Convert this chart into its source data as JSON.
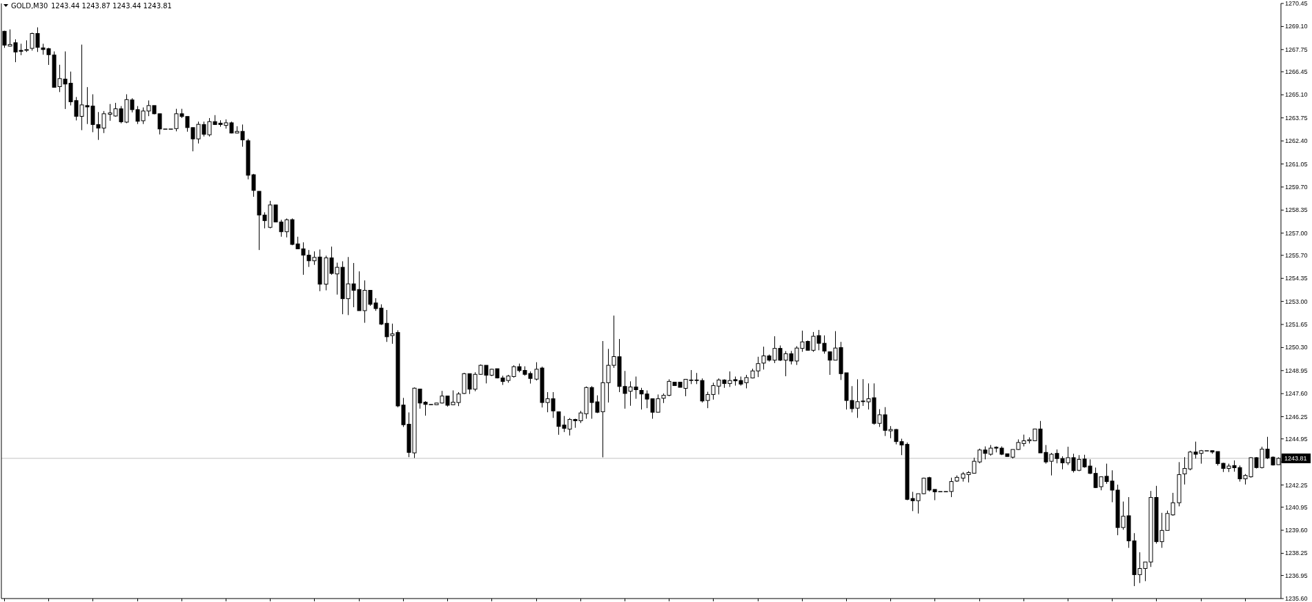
{
  "chart_data": {
    "type": "candlestick",
    "title": "GOLD,M30",
    "subtitle": "1243.44 1243.87 1243.44 1243.81",
    "color": "#000000",
    "grid": false,
    "tick_labels": "y",
    "categories": [
      null,
      null,
      null,
      null,
      null,
      null,
      null,
      null,
      null,
      null,
      null,
      null,
      null,
      null,
      null,
      null,
      null,
      null,
      null,
      null,
      null,
      null,
      null,
      null,
      null,
      null,
      null,
      null,
      null,
      null,
      null,
      null,
      null,
      null,
      null,
      null,
      null,
      null,
      null,
      null,
      null,
      null,
      null,
      null,
      null,
      null,
      null,
      null,
      null,
      null,
      null,
      null,
      null,
      null,
      null,
      null,
      null,
      null,
      null,
      null,
      null,
      null,
      null,
      null,
      null,
      null,
      null,
      null,
      null,
      null,
      null,
      null,
      null,
      null,
      null,
      null,
      null,
      null,
      null,
      null,
      null,
      null,
      null,
      null,
      null,
      null,
      null,
      null,
      null,
      null,
      null,
      null,
      null,
      null,
      null,
      null,
      null,
      null,
      null,
      null,
      null,
      null,
      null,
      null,
      null,
      null,
      null,
      null,
      null,
      null,
      null,
      null,
      null,
      null,
      null,
      null,
      null,
      null,
      null,
      null,
      null,
      null,
      null,
      null,
      null,
      null,
      null,
      null,
      null,
      null,
      null,
      null,
      null,
      null,
      null,
      null,
      null,
      null,
      null,
      null,
      null,
      null,
      null,
      null,
      null,
      null,
      null,
      null,
      null,
      null,
      null,
      null,
      null,
      null,
      null,
      null,
      null,
      null,
      null,
      null,
      null,
      null,
      null,
      null,
      null,
      null,
      null,
      null,
      null,
      null,
      null,
      null,
      null,
      null,
      null,
      null,
      null,
      null,
      null,
      null,
      null,
      null,
      null,
      null,
      null,
      null,
      null,
      null,
      null,
      null,
      null,
      null,
      null,
      null,
      null,
      null,
      null,
      null,
      null,
      null,
      null,
      null,
      null,
      null,
      null,
      null,
      null,
      null,
      null,
      null,
      null,
      null,
      null,
      null,
      null,
      null,
      null,
      null,
      null,
      null,
      null,
      null,
      null,
      null,
      null,
      null,
      null,
      null,
      null,
      null,
      null
    ],
    "ohlc": [
      [
        1268.82,
        1268.85,
        1267.85,
        1268.01
      ],
      [
        1267.95,
        1268.93,
        1267.93,
        1268.05
      ],
      [
        1268.15,
        1268.35,
        1267.01,
        1267.61
      ],
      [
        1267.7,
        1268.09,
        1267.42,
        1267.65
      ],
      [
        1267.7,
        1268.29,
        1267.61,
        1267.75
      ],
      [
        1267.82,
        1268.74,
        1267.69,
        1268.69
      ],
      [
        1268.69,
        1269.05,
        1267.61,
        1267.88
      ],
      [
        1267.85,
        1268.09,
        1267.45,
        1267.75
      ],
      [
        1267.8,
        1267.85,
        1266.85,
        1267.45
      ],
      [
        1267.43,
        1267.64,
        1265.54,
        1265.54
      ],
      [
        1265.58,
        1266.86,
        1265.26,
        1266.05
      ],
      [
        1266.02,
        1267.64,
        1264.27,
        1265.73
      ],
      [
        1265.78,
        1266.46,
        1264.48,
        1264.69
      ],
      [
        1264.76,
        1264.97,
        1263.6,
        1263.84
      ],
      [
        1263.84,
        1268.04,
        1263.03,
        1264.51
      ],
      [
        1264.47,
        1265.55,
        1263.39,
        1264.39
      ],
      [
        1264.44,
        1265.13,
        1262.91,
        1263.36
      ],
      [
        1263.36,
        1264.09,
        1262.46,
        1263.15
      ],
      [
        1263.15,
        1264.15,
        1262.86,
        1263.99
      ],
      [
        1263.96,
        1264.56,
        1263.58,
        1264.04
      ],
      [
        1263.86,
        1264.63,
        1263.82,
        1264.28
      ],
      [
        1264.28,
        1264.44,
        1263.43,
        1263.52
      ],
      [
        1263.5,
        1265.13,
        1263.44,
        1264.82
      ],
      [
        1264.8,
        1264.9,
        1264.07,
        1264.23
      ],
      [
        1264.23,
        1264.44,
        1263.39,
        1263.55
      ],
      [
        1263.58,
        1264.36,
        1263.39,
        1264.15
      ],
      [
        1264.15,
        1264.77,
        1263.85,
        1264.47
      ],
      [
        1264.47,
        1264.47,
        1263.96,
        1263.99
      ],
      [
        1263.99,
        1263.99,
        1262.78,
        1263.1
      ],
      [
        1263.1,
        1263.1,
        1263.1,
        1263.1
      ],
      [
        1263.1,
        1263.1,
        1263.1,
        1263.1
      ],
      [
        1263.12,
        1264.28,
        1262.96,
        1263.99
      ],
      [
        1263.99,
        1264.28,
        1263.74,
        1263.83
      ],
      [
        1263.83,
        1263.83,
        1262.94,
        1263.18
      ],
      [
        1263.18,
        1263.18,
        1261.79,
        1262.52
      ],
      [
        1262.52,
        1263.53,
        1262.25,
        1263.37
      ],
      [
        1263.36,
        1263.53,
        1262.66,
        1262.79
      ],
      [
        1262.76,
        1263.74,
        1262.66,
        1263.53
      ],
      [
        1263.53,
        1263.91,
        1263.36,
        1263.36
      ],
      [
        1263.44,
        1263.61,
        1263.23,
        1263.36
      ],
      [
        1263.31,
        1263.66,
        1263.12,
        1263.46
      ],
      [
        1263.46,
        1263.53,
        1262.84,
        1262.86
      ],
      [
        1262.86,
        1263.26,
        1262.84,
        1262.96
      ],
      [
        1262.96,
        1263.36,
        1262.06,
        1262.46
      ],
      [
        1262.41,
        1262.52,
        1260.15,
        1260.39
      ],
      [
        1260.42,
        1260.47,
        1259.13,
        1259.5
      ],
      [
        1259.45,
        1259.45,
        1256.01,
        1258.06
      ],
      [
        1258.06,
        1258.22,
        1257.28,
        1257.73
      ],
      [
        1257.34,
        1258.89,
        1257.28,
        1258.65
      ],
      [
        1258.65,
        1258.65,
        1257.65,
        1257.65
      ],
      [
        1257.65,
        1257.78,
        1256.79,
        1257.08
      ],
      [
        1257.08,
        1257.86,
        1256.75,
        1257.78
      ],
      [
        1257.79,
        1257.86,
        1256.29,
        1256.34
      ],
      [
        1256.37,
        1256.79,
        1256.08,
        1256.08
      ],
      [
        1256.08,
        1256.46,
        1254.56,
        1255.71
      ],
      [
        1255.71,
        1256.01,
        1255.02,
        1255.38
      ],
      [
        1255.38,
        1255.93,
        1255.14,
        1255.58
      ],
      [
        1255.6,
        1256.04,
        1253.6,
        1254.01
      ],
      [
        1254.01,
        1255.68,
        1253.65,
        1255.55
      ],
      [
        1255.55,
        1256.21,
        1254.56,
        1254.64
      ],
      [
        1254.61,
        1255.27,
        1253.4,
        1255.0
      ],
      [
        1255.0,
        1255.35,
        1252.25,
        1253.16
      ],
      [
        1253.16,
        1255.6,
        1252.2,
        1254.03
      ],
      [
        1254.03,
        1255.25,
        1252.66,
        1253.65
      ],
      [
        1253.7,
        1254.76,
        1252.46,
        1252.46
      ],
      [
        1252.46,
        1254.23,
        1251.75,
        1253.65
      ],
      [
        1253.65,
        1253.65,
        1252.74,
        1252.83
      ],
      [
        1252.91,
        1253.19,
        1252.45,
        1252.58
      ],
      [
        1252.61,
        1252.83,
        1251.62,
        1251.67
      ],
      [
        1251.72,
        1252.5,
        1250.63,
        1250.93
      ],
      [
        1251.0,
        1251.7,
        1250.52,
        1251.1
      ],
      [
        1251.18,
        1251.31,
        1246.8,
        1246.88
      ],
      [
        1246.93,
        1247.35,
        1245.65,
        1245.78
      ],
      [
        1245.81,
        1246.5,
        1243.88,
        1244.16
      ],
      [
        1244.13,
        1247.96,
        1243.83,
        1247.92
      ],
      [
        1247.87,
        1247.87,
        1246.72,
        1247.05
      ],
      [
        1247.1,
        1247.16,
        1246.31,
        1246.97
      ],
      [
        1246.97,
        1246.97,
        1246.97,
        1246.97
      ],
      [
        1246.95,
        1247.05,
        1246.95,
        1247.05
      ],
      [
        1247.05,
        1247.76,
        1247.02,
        1247.46
      ],
      [
        1247.46,
        1247.46,
        1246.84,
        1246.92
      ],
      [
        1246.95,
        1247.79,
        1246.95,
        1247.1
      ],
      [
        1247.08,
        1247.69,
        1246.87,
        1247.58
      ],
      [
        1247.61,
        1248.82,
        1247.58,
        1248.77
      ],
      [
        1248.77,
        1248.77,
        1247.58,
        1247.86
      ],
      [
        1247.86,
        1248.85,
        1247.74,
        1248.73
      ],
      [
        1248.73,
        1249.31,
        1248.7,
        1249.26
      ],
      [
        1249.26,
        1249.26,
        1248.2,
        1248.68
      ],
      [
        1248.68,
        1249.06,
        1248.63,
        1249.03
      ],
      [
        1249.06,
        1249.06,
        1248.49,
        1248.52
      ],
      [
        1248.52,
        1248.65,
        1248.11,
        1248.31
      ],
      [
        1248.37,
        1248.7,
        1248.24,
        1248.63
      ],
      [
        1248.6,
        1249.26,
        1248.54,
        1249.18
      ],
      [
        1249.18,
        1249.36,
        1248.85,
        1248.95
      ],
      [
        1248.96,
        1249.2,
        1248.65,
        1248.73
      ],
      [
        1248.78,
        1248.9,
        1248.19,
        1248.49
      ],
      [
        1248.45,
        1249.44,
        1248.37,
        1249.03
      ],
      [
        1249.1,
        1249.18,
        1246.79,
        1247.08
      ],
      [
        1247.08,
        1247.69,
        1246.51,
        1247.3
      ],
      [
        1247.3,
        1247.69,
        1246.18,
        1246.59
      ],
      [
        1246.54,
        1246.54,
        1245.19,
        1245.68
      ],
      [
        1245.76,
        1246.29,
        1245.35,
        1245.57
      ],
      [
        1245.52,
        1246.17,
        1245.15,
        1246.09
      ],
      [
        1246.09,
        1246.13,
        1245.6,
        1246.01
      ],
      [
        1246.01,
        1246.59,
        1245.88,
        1246.47
      ],
      [
        1246.42,
        1248.02,
        1246.13,
        1247.96
      ],
      [
        1247.96,
        1248.04,
        1246.13,
        1247.08
      ],
      [
        1247.12,
        1247.5,
        1246.46,
        1246.51
      ],
      [
        1246.54,
        1250.68,
        1243.87,
        1248.24
      ],
      [
        1248.24,
        1250.22,
        1247.08,
        1249.26
      ],
      [
        1249.26,
        1252.17,
        1249.11,
        1249.77
      ],
      [
        1249.76,
        1250.8,
        1247.69,
        1248.02
      ],
      [
        1248.02,
        1248.93,
        1246.72,
        1247.61
      ],
      [
        1247.74,
        1248.32,
        1246.89,
        1247.99
      ],
      [
        1247.99,
        1248.6,
        1247.3,
        1247.83
      ],
      [
        1247.79,
        1247.94,
        1246.67,
        1247.58
      ],
      [
        1247.58,
        1247.79,
        1246.75,
        1247.28
      ],
      [
        1247.3,
        1247.3,
        1246.13,
        1246.51
      ],
      [
        1246.51,
        1247.55,
        1246.51,
        1247.3
      ],
      [
        1247.33,
        1247.61,
        1247.05,
        1247.5
      ],
      [
        1247.5,
        1248.44,
        1247.45,
        1248.32
      ],
      [
        1248.27,
        1248.27,
        1248.07,
        1248.07
      ],
      [
        1248.27,
        1248.27,
        1247.97,
        1247.97
      ],
      [
        1247.91,
        1248.44,
        1247.45,
        1248.44
      ],
      [
        1248.37,
        1248.98,
        1248.16,
        1248.4
      ],
      [
        1248.4,
        1248.81,
        1248.16,
        1248.37
      ],
      [
        1248.37,
        1248.49,
        1247.08,
        1247.17
      ],
      [
        1247.2,
        1247.71,
        1246.75,
        1247.55
      ],
      [
        1247.55,
        1248.24,
        1247.25,
        1248.07
      ],
      [
        1248.04,
        1248.49,
        1247.55,
        1248.4
      ],
      [
        1248.4,
        1248.44,
        1247.94,
        1248.19
      ],
      [
        1248.19,
        1248.9,
        1247.99,
        1248.37
      ],
      [
        1248.42,
        1248.6,
        1248.07,
        1248.35
      ],
      [
        1248.37,
        1248.6,
        1248.07,
        1248.16
      ],
      [
        1248.24,
        1248.7,
        1247.91,
        1248.54
      ],
      [
        1248.52,
        1249.06,
        1248.49,
        1248.93
      ],
      [
        1248.93,
        1249.76,
        1248.57,
        1249.36
      ],
      [
        1249.39,
        1250.35,
        1249.01,
        1249.81
      ],
      [
        1249.81,
        1249.89,
        1249.48,
        1249.56
      ],
      [
        1249.56,
        1250.96,
        1249.39,
        1250.25
      ],
      [
        1250.25,
        1250.42,
        1249.51,
        1249.56
      ],
      [
        1249.56,
        1250.09,
        1248.62,
        1249.94
      ],
      [
        1249.94,
        1250.1,
        1249.31,
        1249.51
      ],
      [
        1249.51,
        1250.38,
        1249.28,
        1250.27
      ],
      [
        1250.25,
        1251.29,
        1250.05,
        1250.63
      ],
      [
        1250.66,
        1250.71,
        1250.14,
        1250.14
      ],
      [
        1250.14,
        1251.21,
        1250.05,
        1250.96
      ],
      [
        1251.0,
        1251.33,
        1250.14,
        1250.55
      ],
      [
        1250.55,
        1251.01,
        1249.94,
        1250.09
      ],
      [
        1250.05,
        1250.05,
        1248.7,
        1249.56
      ],
      [
        1249.56,
        1251.26,
        1249.56,
        1250.27
      ],
      [
        1250.3,
        1250.63,
        1248.4,
        1248.77
      ],
      [
        1248.82,
        1248.82,
        1246.67,
        1247.2
      ],
      [
        1247.2,
        1248.04,
        1246.5,
        1246.72
      ],
      [
        1246.75,
        1248.44,
        1246.18,
        1247.13
      ],
      [
        1247.13,
        1248.45,
        1246.88,
        1247.17
      ],
      [
        1247.12,
        1248.2,
        1246.67,
        1247.3
      ],
      [
        1247.36,
        1248.2,
        1245.78,
        1245.86
      ],
      [
        1245.86,
        1246.69,
        1245.65,
        1246.36
      ],
      [
        1246.36,
        1246.81,
        1245.12,
        1245.45
      ],
      [
        1245.42,
        1245.7,
        1244.99,
        1245.5
      ],
      [
        1245.5,
        1245.53,
        1244.63,
        1244.79
      ],
      [
        1244.79,
        1244.96,
        1244.0,
        1244.59
      ],
      [
        1244.63,
        1244.74,
        1241.36,
        1241.41
      ],
      [
        1241.46,
        1241.85,
        1240.72,
        1241.33
      ],
      [
        1241.33,
        1241.74,
        1240.58,
        1241.74
      ],
      [
        1241.74,
        1242.68,
        1241.71,
        1242.65
      ],
      [
        1242.68,
        1242.73,
        1241.87,
        1241.95
      ],
      [
        1241.99,
        1241.99,
        1241.36,
        1241.85
      ],
      [
        1241.87,
        1241.87,
        1241.87,
        1241.87
      ],
      [
        1241.87,
        1241.87,
        1241.87,
        1241.87
      ],
      [
        1241.87,
        1242.68,
        1241.54,
        1242.45
      ],
      [
        1242.48,
        1242.81,
        1242.43,
        1242.7
      ],
      [
        1242.65,
        1243.01,
        1242.45,
        1242.9
      ],
      [
        1242.86,
        1243.06,
        1242.4,
        1242.98
      ],
      [
        1242.94,
        1243.85,
        1242.94,
        1243.64
      ],
      [
        1243.6,
        1244.38,
        1243.52,
        1244.3
      ],
      [
        1244.3,
        1244.51,
        1243.75,
        1244.1
      ],
      [
        1244.05,
        1244.59,
        1243.97,
        1244.41
      ],
      [
        1244.46,
        1244.51,
        1244.16,
        1244.41
      ],
      [
        1244.41,
        1244.51,
        1244.0,
        1244.05
      ],
      [
        1244.08,
        1244.08,
        1243.92,
        1243.92
      ],
      [
        1243.88,
        1244.33,
        1243.8,
        1244.33
      ],
      [
        1244.33,
        1244.92,
        1244.3,
        1244.74
      ],
      [
        1244.68,
        1245.2,
        1244.51,
        1244.84
      ],
      [
        1244.84,
        1245.04,
        1244.68,
        1244.9
      ],
      [
        1244.84,
        1245.53,
        1244.84,
        1245.53
      ],
      [
        1245.53,
        1246.0,
        1244.13,
        1244.13
      ],
      [
        1244.16,
        1244.59,
        1243.5,
        1243.6
      ],
      [
        1243.64,
        1244.13,
        1242.81,
        1244.05
      ],
      [
        1244.1,
        1244.33,
        1243.52,
        1243.8
      ],
      [
        1243.8,
        1243.93,
        1243.17,
        1243.55
      ],
      [
        1243.55,
        1244.49,
        1243.42,
        1243.85
      ],
      [
        1243.85,
        1244.08,
        1242.98,
        1243.09
      ],
      [
        1243.11,
        1244.0,
        1243.06,
        1243.75
      ],
      [
        1243.77,
        1244.02,
        1243.26,
        1243.31
      ],
      [
        1243.36,
        1243.75,
        1242.89,
        1242.93
      ],
      [
        1242.93,
        1243.27,
        1242.07,
        1242.1
      ],
      [
        1242.15,
        1242.73,
        1241.94,
        1242.73
      ],
      [
        1242.76,
        1243.5,
        1242.32,
        1242.45
      ],
      [
        1242.48,
        1243.11,
        1241.24,
        1241.95
      ],
      [
        1241.95,
        1242.27,
        1239.31,
        1239.76
      ],
      [
        1239.76,
        1241.28,
        1239.63,
        1240.42
      ],
      [
        1240.45,
        1241.54,
        1238.57,
        1238.98
      ],
      [
        1238.98,
        1239.43,
        1236.33,
        1237.0
      ],
      [
        1237.0,
        1238.31,
        1236.51,
        1237.36
      ],
      [
        1237.36,
        1237.74,
        1236.62,
        1237.74
      ],
      [
        1237.74,
        1241.9,
        1237.45,
        1241.52
      ],
      [
        1241.52,
        1242.2,
        1238.82,
        1238.93
      ],
      [
        1238.93,
        1240.62,
        1238.57,
        1239.59
      ],
      [
        1239.59,
        1240.75,
        1239.59,
        1240.58
      ],
      [
        1240.5,
        1241.79,
        1240.45,
        1241.21
      ],
      [
        1241.21,
        1243.59,
        1241.0,
        1242.86
      ],
      [
        1242.9,
        1243.88,
        1242.28,
        1243.22
      ],
      [
        1243.19,
        1244.25,
        1243.11,
        1244.18
      ],
      [
        1244.18,
        1244.79,
        1243.8,
        1244.05
      ],
      [
        1244.1,
        1244.3,
        1243.5,
        1244.26
      ],
      [
        1244.26,
        1244.26,
        1244.26,
        1244.26
      ],
      [
        1244.26,
        1244.26,
        1244.08,
        1244.18
      ],
      [
        1244.21,
        1244.21,
        1243.39,
        1243.5
      ],
      [
        1243.52,
        1243.55,
        1243.01,
        1243.22
      ],
      [
        1243.22,
        1243.5,
        1243.01,
        1243.36
      ],
      [
        1243.39,
        1243.69,
        1243.03,
        1243.26
      ],
      [
        1243.27,
        1243.39,
        1242.45,
        1242.61
      ],
      [
        1242.61,
        1242.89,
        1242.28,
        1242.81
      ],
      [
        1242.73,
        1243.88,
        1242.68,
        1243.85
      ],
      [
        1243.85,
        1243.88,
        1243.22,
        1243.27
      ],
      [
        1243.27,
        1244.49,
        1243.22,
        1244.35
      ],
      [
        1244.35,
        1245.07,
        1243.77,
        1243.83
      ],
      [
        1243.88,
        1243.92,
        1243.39,
        1243.42
      ],
      [
        1243.44,
        1243.87,
        1243.44,
        1243.81
      ]
    ],
    "ylim": [
      1235.6,
      1270.45
    ],
    "yticks": [
      {
        "value": 1235.6,
        "label": "1235.60"
      },
      {
        "value": 1236.95,
        "label": "1236.95"
      },
      {
        "value": 1238.25,
        "label": "1238.25"
      },
      {
        "value": 1239.6,
        "label": "1239.60"
      },
      {
        "value": 1240.95,
        "label": "1240.95"
      },
      {
        "value": 1242.25,
        "label": "1242.25"
      },
      {
        "value": 1243.6,
        "label": null
      },
      {
        "value": 1244.95,
        "label": "1244.95"
      },
      {
        "value": 1246.25,
        "label": "1246.25"
      },
      {
        "value": 1247.6,
        "label": "1247.60"
      },
      {
        "value": 1248.95,
        "label": "1248.95"
      },
      {
        "value": 1250.3,
        "label": "1250.30"
      },
      {
        "value": 1251.65,
        "label": "1251.65"
      },
      {
        "value": 1253,
        "label": "1253.00"
      },
      {
        "value": 1254.35,
        "label": "1254.35"
      },
      {
        "value": 1255.7,
        "label": "1255.70"
      },
      {
        "value": 1257,
        "label": "1257.00"
      },
      {
        "value": 1258.35,
        "label": "1258.35"
      },
      {
        "value": 1259.7,
        "label": "1259.70"
      },
      {
        "value": 1261.05,
        "label": "1261.05"
      },
      {
        "value": 1262.4,
        "label": "1262.40"
      },
      {
        "value": 1263.75,
        "label": "1263.75"
      },
      {
        "value": 1265.1,
        "label": "1265.10"
      },
      {
        "value": 1266.45,
        "label": "1266.45"
      },
      {
        "value": 1267.75,
        "label": "1267.75"
      },
      {
        "value": 1269.1,
        "label": "1269.10"
      },
      {
        "value": 1270.45,
        "label": "1270.45"
      }
    ],
    "ref_lines": [
      {
        "axis": "y",
        "value": 1243.81,
        "label": "1243.81",
        "color": "#c0c0c0"
      }
    ]
  }
}
